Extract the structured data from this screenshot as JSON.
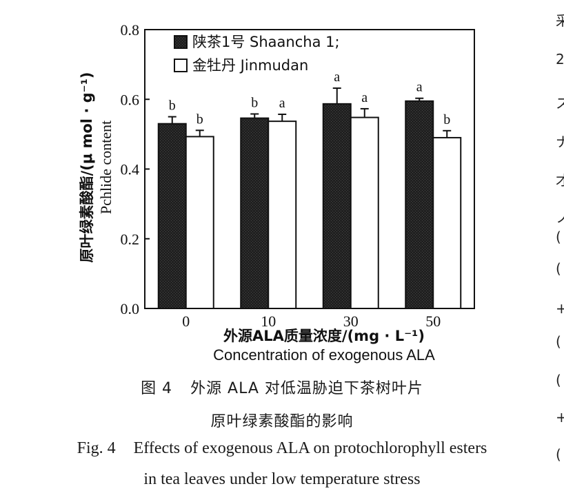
{
  "chart_data": {
    "type": "bar",
    "ylabel_zh": "原叶绿素酸酯/(μ mol · g⁻¹)",
    "ylabel_en": "Pchlide content",
    "xlabel_zh": "外源ALA质量浓度/(mg · L⁻¹)",
    "xlabel_en": "Concentration of exogenous ALA",
    "categories": [
      "0",
      "10",
      "30",
      "50"
    ],
    "ylim": [
      0,
      0.8
    ],
    "yticks": [
      "0.0",
      "0.2",
      "0.4",
      "0.6",
      "0.8"
    ],
    "legend_position": "top-left",
    "grid": false,
    "series": [
      {
        "name": "陕茶1号 Shaancha 1;",
        "fill": "#222222",
        "values": [
          0.53,
          0.546,
          0.587,
          0.595
        ],
        "errors": [
          0.02,
          0.012,
          0.045,
          0.008
        ],
        "letters": [
          "b",
          "b",
          "a",
          "a"
        ]
      },
      {
        "name": "金牡丹 Jinmudan",
        "fill": "#ffffff",
        "values": [
          0.493,
          0.537,
          0.548,
          0.49
        ],
        "errors": [
          0.018,
          0.02,
          0.025,
          0.02
        ],
        "letters": [
          "b",
          "a",
          "a",
          "b"
        ]
      }
    ]
  },
  "caption": {
    "zh_num": "图 4",
    "zh_line1": "外源 ALA 对低温胁迫下茶树叶片",
    "zh_line2": "原叶绿素酸酯的影响",
    "en_num": "Fig. 4",
    "en_line1": "Effects of exogenous ALA on protochlorophyll esters",
    "en_line2": "in tea leaves under low temperature stress"
  },
  "edge_chars": [
    "采",
    "2",
    "ス",
    "ナ",
    "才",
    "ノ",
    "(",
    "(",
    "+",
    "(",
    "(",
    "+",
    "("
  ]
}
